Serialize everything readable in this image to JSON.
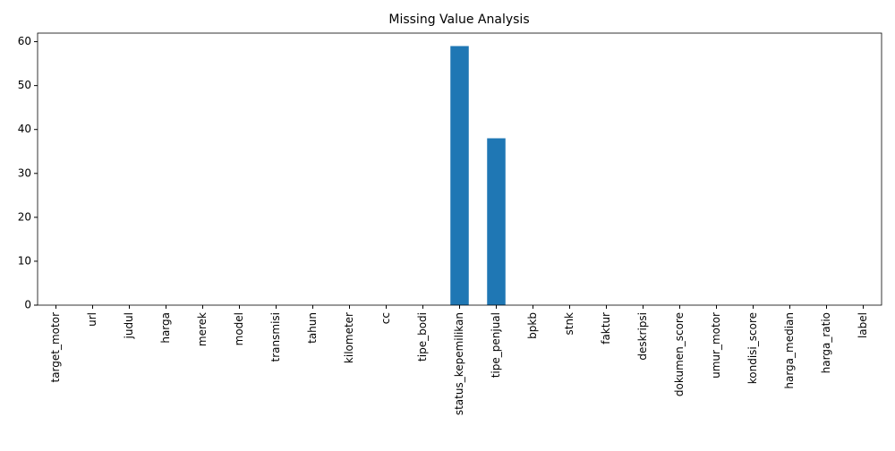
{
  "chart_data": {
    "type": "bar",
    "title": "Missing Value Analysis",
    "categories": [
      "target_motor",
      "url",
      "judul",
      "harga",
      "merek",
      "model",
      "transmisi",
      "tahun",
      "kilometer",
      "cc",
      "tipe_bodi",
      "status_kepemilikan",
      "tipe_penjual",
      "bpkb",
      "stnk",
      "faktur",
      "deskripsi",
      "dokumen_score",
      "umur_motor",
      "kondisi_score",
      "harga_median",
      "harga_ratio",
      "label"
    ],
    "values": [
      0,
      0,
      0,
      0,
      0,
      0,
      0,
      0,
      0,
      0,
      0,
      59,
      38,
      0,
      0,
      0,
      0,
      0,
      0,
      0,
      0,
      0,
      0
    ],
    "color": "#1f77b4",
    "ylim": [
      0,
      61.95
    ],
    "yticks": [
      0,
      10,
      20,
      30,
      40,
      50,
      60
    ],
    "grid": false
  }
}
